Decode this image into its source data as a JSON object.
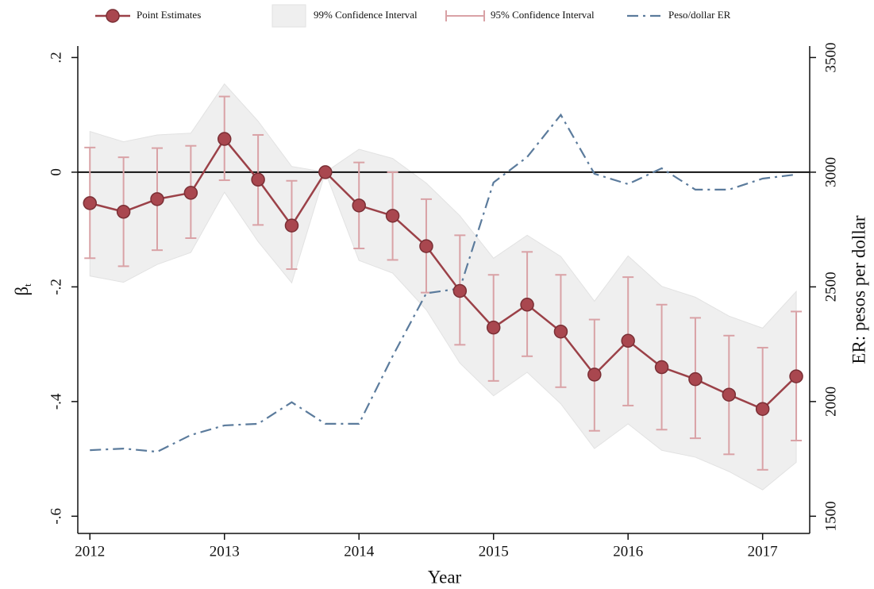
{
  "chart_data": {
    "type": "line",
    "x_label": "Year",
    "y_label": "β",
    "y_label_subscript": "t",
    "y2_label": "ER: pesos per dollar",
    "x": [
      2012,
      2012.25,
      2012.5,
      2012.75,
      2013,
      2013.25,
      2013.5,
      2013.75,
      2014,
      2014.25,
      2014.5,
      2014.75,
      2015,
      2015.25,
      2015.5,
      2015.75,
      2016,
      2016.25,
      2016.5,
      2016.75,
      2017,
      2017.25
    ],
    "series": [
      {
        "name": "Point Estimates",
        "kind": "point",
        "color": "#9b4148",
        "values": [
          -0.054,
          -0.069,
          -0.047,
          -0.036,
          0.058,
          -0.013,
          -0.093,
          0,
          -0.058,
          -0.076,
          -0.129,
          -0.207,
          -0.271,
          -0.231,
          -0.278,
          -0.353,
          -0.294,
          -0.34,
          -0.361,
          -0.388,
          -0.413,
          -0.356
        ]
      },
      {
        "name": "99% Confidence Interval",
        "kind": "band",
        "color": "#efefef",
        "upper": [
          0.071,
          0.053,
          0.065,
          0.068,
          0.154,
          0.089,
          0.01,
          0,
          0.04,
          0.024,
          -0.019,
          -0.076,
          -0.15,
          -0.11,
          -0.147,
          -0.225,
          -0.146,
          -0.199,
          -0.218,
          -0.251,
          -0.272,
          -0.208
        ],
        "lower": [
          -0.181,
          -0.192,
          -0.161,
          -0.14,
          -0.035,
          -0.121,
          -0.193,
          0,
          -0.154,
          -0.176,
          -0.24,
          -0.333,
          -0.39,
          -0.349,
          -0.404,
          -0.482,
          -0.439,
          -0.485,
          -0.497,
          -0.522,
          -0.554,
          -0.506
        ]
      },
      {
        "name": "95% Confidence Interval",
        "kind": "errorbar",
        "color": "#d9a2a6",
        "upper": [
          0.043,
          0.026,
          0.042,
          0.046,
          0.132,
          0.065,
          -0.015,
          0,
          0.017,
          0,
          -0.047,
          -0.11,
          -0.179,
          -0.139,
          -0.179,
          -0.257,
          -0.183,
          -0.231,
          -0.254,
          -0.285,
          -0.306,
          -0.243
        ],
        "lower": [
          -0.15,
          -0.164,
          -0.136,
          -0.115,
          -0.014,
          -0.092,
          -0.169,
          0,
          -0.133,
          -0.153,
          -0.21,
          -0.301,
          -0.364,
          -0.321,
          -0.375,
          -0.451,
          -0.407,
          -0.449,
          -0.464,
          -0.492,
          -0.519,
          -0.468
        ]
      },
      {
        "name": "Peso/dollar ER",
        "kind": "dashdot",
        "axis": "y2",
        "color": "#5b7b9c",
        "values": [
          1788,
          1795,
          1781,
          1854,
          1896,
          1903,
          1997,
          1903,
          1903,
          2198,
          2472,
          2493,
          2955,
          3066,
          3250,
          2993,
          2948,
          3017,
          2924,
          2924,
          2972,
          2990
        ]
      }
    ],
    "hline": 0,
    "xlim": [
      2011.91,
      2017.35
    ],
    "xticks": [
      2012,
      2013,
      2014,
      2015,
      2016,
      2017
    ],
    "ylim": [
      -0.63,
      0.22
    ],
    "yticks": [
      {
        "value": 0.2,
        "label": ".2"
      },
      0,
      {
        "value": -0.2,
        "label": "-.2"
      },
      {
        "value": -0.4,
        "label": "-.4"
      },
      {
        "value": -0.6,
        "label": "-.6"
      }
    ],
    "y2lim": [
      1425,
      3550
    ],
    "y2ticks": [
      1500,
      2000,
      2500,
      3000,
      3500
    ]
  }
}
